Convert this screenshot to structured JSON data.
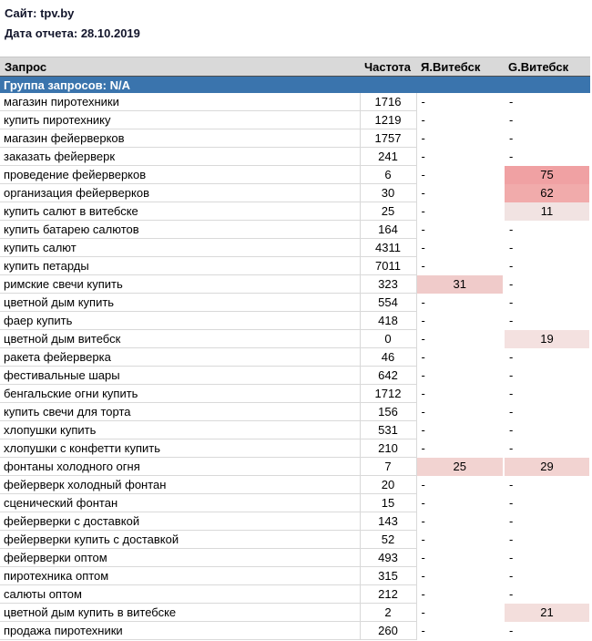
{
  "page": {
    "site_label": "Сайт: tpv.by",
    "report_date_label": "Дата отчета: 28.10.2019"
  },
  "table": {
    "columns": [
      "Запрос",
      "Частота",
      "Я.Витебск",
      "G.Витебск"
    ],
    "group_header": "Группа запросов: N/A",
    "colors": {
      "group_header_bg": "#3A74AD",
      "group_header_text": "#FFFFFF",
      "header_bg": "#D9D9D9",
      "header_border_bottom": "#4D4D4D",
      "grid_border": "#D9D9D9"
    },
    "rows": [
      {
        "query": "магазин пиротехники",
        "frequency": "1716",
        "ya_vitebsk": "-",
        "g_vitebsk": "-"
      },
      {
        "query": "купить пиротехнику",
        "frequency": "1219",
        "ya_vitebsk": "-",
        "g_vitebsk": "-"
      },
      {
        "query": "магазин фейерверков",
        "frequency": "1757",
        "ya_vitebsk": "-",
        "g_vitebsk": "-"
      },
      {
        "query": "заказать фейерверк",
        "frequency": "241",
        "ya_vitebsk": "-",
        "g_vitebsk": "-"
      },
      {
        "query": "проведение фейерверков",
        "frequency": "6",
        "ya_vitebsk": "-",
        "g_vitebsk": "75",
        "g_bg": "#F0A1A3"
      },
      {
        "query": "организация фейерверков",
        "frequency": "30",
        "ya_vitebsk": "-",
        "g_vitebsk": "62",
        "g_bg": "#F1ABAB"
      },
      {
        "query": "купить салют в витебске",
        "frequency": "25",
        "ya_vitebsk": "-",
        "g_vitebsk": "11",
        "g_bg": "#F1E3E2"
      },
      {
        "query": "купить батарею салютов",
        "frequency": "164",
        "ya_vitebsk": "-",
        "g_vitebsk": "-"
      },
      {
        "query": "купить салют",
        "frequency": "4311",
        "ya_vitebsk": "-",
        "g_vitebsk": "-"
      },
      {
        "query": "купить петарды",
        "frequency": "7011",
        "ya_vitebsk": "-",
        "g_vitebsk": "-"
      },
      {
        "query": "римские свечи купить",
        "frequency": "323",
        "ya_vitebsk": "31",
        "ya_bg": "#F0CBCA",
        "g_vitebsk": "-"
      },
      {
        "query": "цветной дым купить",
        "frequency": "554",
        "ya_vitebsk": "-",
        "g_vitebsk": "-"
      },
      {
        "query": "фаер купить",
        "frequency": "418",
        "ya_vitebsk": "-",
        "g_vitebsk": "-"
      },
      {
        "query": "цветной дым витебск",
        "frequency": "0",
        "ya_vitebsk": "-",
        "g_vitebsk": "19",
        "g_bg": "#F4E1E0"
      },
      {
        "query": "ракета фейерверка",
        "frequency": "46",
        "ya_vitebsk": "-",
        "g_vitebsk": "-"
      },
      {
        "query": "фестивальные шары",
        "frequency": "642",
        "ya_vitebsk": "-",
        "g_vitebsk": "-"
      },
      {
        "query": "бенгальские огни купить",
        "frequency": "1712",
        "ya_vitebsk": "-",
        "g_vitebsk": "-"
      },
      {
        "query": "купить свечи для торта",
        "frequency": "156",
        "ya_vitebsk": "-",
        "g_vitebsk": "-"
      },
      {
        "query": "хлопушки купить",
        "frequency": "531",
        "ya_vitebsk": "-",
        "g_vitebsk": "-"
      },
      {
        "query": "хлопушки с конфетти купить",
        "frequency": "210",
        "ya_vitebsk": "-",
        "g_vitebsk": "-"
      },
      {
        "query": "фонтаны холодного огня",
        "frequency": "7",
        "ya_vitebsk": "25",
        "ya_bg": "#F2D3D1",
        "g_vitebsk": "29",
        "g_bg": "#F2D3D1"
      },
      {
        "query": "фейерверк холодный фонтан",
        "frequency": "20",
        "ya_vitebsk": "-",
        "g_vitebsk": "-"
      },
      {
        "query": "сценический фонтан",
        "frequency": "15",
        "ya_vitebsk": "-",
        "g_vitebsk": "-"
      },
      {
        "query": "фейерверки с доставкой",
        "frequency": "143",
        "ya_vitebsk": "-",
        "g_vitebsk": "-"
      },
      {
        "query": "фейерверки купить с доставкой",
        "frequency": "52",
        "ya_vitebsk": "-",
        "g_vitebsk": "-"
      },
      {
        "query": "фейерверки оптом",
        "frequency": "493",
        "ya_vitebsk": "-",
        "g_vitebsk": "-"
      },
      {
        "query": "пиротехника оптом",
        "frequency": "315",
        "ya_vitebsk": "-",
        "g_vitebsk": "-"
      },
      {
        "query": "салюты оптом",
        "frequency": "212",
        "ya_vitebsk": "-",
        "g_vitebsk": "-"
      },
      {
        "query": "цветной дым купить в витебске",
        "frequency": "2",
        "ya_vitebsk": "-",
        "g_vitebsk": "21",
        "g_bg": "#F3DEDC"
      },
      {
        "query": "продажа пиротехники",
        "frequency": "260",
        "ya_vitebsk": "-",
        "g_vitebsk": "-"
      }
    ]
  }
}
